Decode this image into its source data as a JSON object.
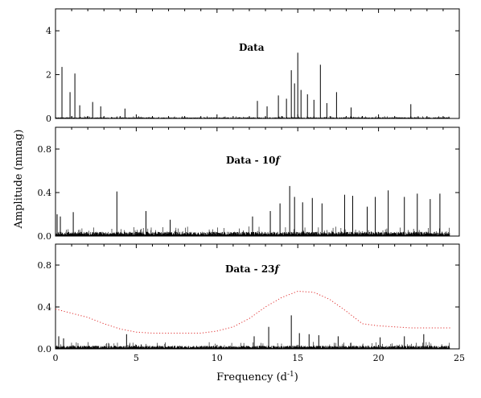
{
  "chart_data": {
    "type": "line",
    "xlabel": {
      "main": "Frequency (d",
      "sup": "-1",
      "close": ")"
    },
    "ylabel": "Amplitude (mmag)",
    "xlim": [
      0,
      25
    ],
    "xticks": [
      "0",
      "5",
      "10",
      "15",
      "20",
      "25"
    ],
    "panels": [
      {
        "title": {
          "main": "Data",
          "italic": ""
        },
        "ylim": [
          0,
          5
        ],
        "yticks": [
          0,
          2,
          4
        ],
        "ytick_labels": [
          "0",
          "2",
          "4"
        ],
        "noise_level": 0.05,
        "peaks": [
          {
            "x": 0.4,
            "y": 2.35
          },
          {
            "x": 0.9,
            "y": 1.2
          },
          {
            "x": 1.2,
            "y": 2.05
          },
          {
            "x": 1.5,
            "y": 0.6
          },
          {
            "x": 2.3,
            "y": 0.75
          },
          {
            "x": 2.8,
            "y": 0.55
          },
          {
            "x": 4.3,
            "y": 0.45
          },
          {
            "x": 12.5,
            "y": 0.8
          },
          {
            "x": 13.1,
            "y": 0.55
          },
          {
            "x": 13.8,
            "y": 1.05
          },
          {
            "x": 14.3,
            "y": 0.9
          },
          {
            "x": 14.6,
            "y": 2.2
          },
          {
            "x": 14.8,
            "y": 1.6
          },
          {
            "x": 15.0,
            "y": 3.0
          },
          {
            "x": 15.2,
            "y": 1.3
          },
          {
            "x": 15.6,
            "y": 1.1
          },
          {
            "x": 16.0,
            "y": 0.85
          },
          {
            "x": 16.4,
            "y": 2.45
          },
          {
            "x": 16.8,
            "y": 0.7
          },
          {
            "x": 17.4,
            "y": 1.2
          },
          {
            "x": 18.3,
            "y": 0.5
          },
          {
            "x": 22.0,
            "y": 0.65
          }
        ]
      },
      {
        "title": {
          "main": "Data - 10",
          "italic": "f"
        },
        "ylim": [
          0,
          1.0
        ],
        "yticks": [
          0,
          0.4,
          0.8
        ],
        "ytick_labels": [
          "0.0",
          "0.4",
          "0.8"
        ],
        "noise_level": 0.04,
        "peaks": [
          {
            "x": 0.1,
            "y": 0.2
          },
          {
            "x": 0.3,
            "y": 0.18
          },
          {
            "x": 1.1,
            "y": 0.22
          },
          {
            "x": 3.8,
            "y": 0.41
          },
          {
            "x": 5.6,
            "y": 0.23
          },
          {
            "x": 7.1,
            "y": 0.15
          },
          {
            "x": 12.2,
            "y": 0.18
          },
          {
            "x": 13.3,
            "y": 0.23
          },
          {
            "x": 13.9,
            "y": 0.3
          },
          {
            "x": 14.5,
            "y": 0.46
          },
          {
            "x": 14.8,
            "y": 0.36
          },
          {
            "x": 15.3,
            "y": 0.31
          },
          {
            "x": 15.9,
            "y": 0.35
          },
          {
            "x": 16.5,
            "y": 0.3
          },
          {
            "x": 17.9,
            "y": 0.38
          },
          {
            "x": 18.4,
            "y": 0.37
          },
          {
            "x": 19.3,
            "y": 0.27
          },
          {
            "x": 19.8,
            "y": 0.36
          },
          {
            "x": 20.6,
            "y": 0.42
          },
          {
            "x": 21.6,
            "y": 0.36
          },
          {
            "x": 22.4,
            "y": 0.39
          },
          {
            "x": 23.2,
            "y": 0.34
          },
          {
            "x": 23.8,
            "y": 0.39
          }
        ]
      },
      {
        "title": {
          "main": "Data - 23",
          "italic": "f"
        },
        "ylim": [
          0,
          1.0
        ],
        "yticks": [
          0,
          0.4,
          0.8
        ],
        "ytick_labels": [
          "0.0",
          "0.4",
          "0.8"
        ],
        "noise_level": 0.03,
        "peaks": [
          {
            "x": 0.2,
            "y": 0.12
          },
          {
            "x": 0.5,
            "y": 0.1
          },
          {
            "x": 4.4,
            "y": 0.14
          },
          {
            "x": 12.3,
            "y": 0.12
          },
          {
            "x": 13.2,
            "y": 0.21
          },
          {
            "x": 14.6,
            "y": 0.32
          },
          {
            "x": 15.1,
            "y": 0.15
          },
          {
            "x": 15.7,
            "y": 0.14
          },
          {
            "x": 16.3,
            "y": 0.13
          },
          {
            "x": 17.5,
            "y": 0.12
          },
          {
            "x": 20.1,
            "y": 0.11
          },
          {
            "x": 21.6,
            "y": 0.12
          },
          {
            "x": 22.8,
            "y": 0.14
          }
        ],
        "threshold_color": "#e03030",
        "threshold": {
          "x": [
            0,
            1,
            2,
            3,
            4,
            5,
            6,
            7,
            8,
            9,
            10,
            11,
            12,
            13,
            14,
            15,
            16,
            17,
            18,
            19,
            20,
            21,
            22,
            23,
            24.5
          ],
          "y": [
            0.38,
            0.34,
            0.3,
            0.24,
            0.19,
            0.16,
            0.15,
            0.15,
            0.15,
            0.15,
            0.17,
            0.21,
            0.29,
            0.4,
            0.49,
            0.55,
            0.54,
            0.47,
            0.36,
            0.24,
            0.22,
            0.21,
            0.2,
            0.2,
            0.2
          ]
        }
      }
    ]
  }
}
